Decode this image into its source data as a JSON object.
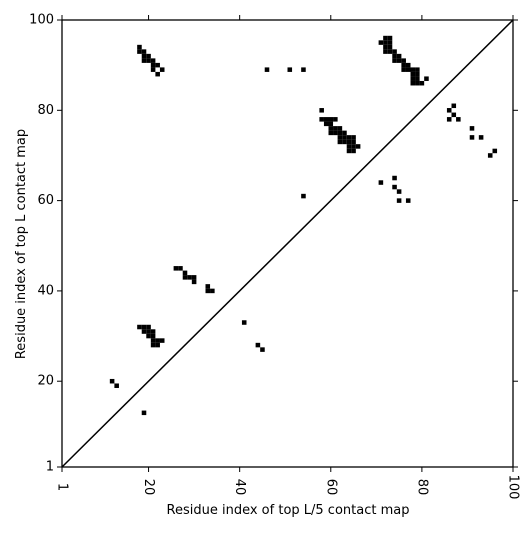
{
  "chart_data": {
    "type": "scatter",
    "title": "",
    "xlabel": "Residue index of top L/5 contact map",
    "ylabel": "Residue index of top L contact map",
    "xlim": [
      1,
      100
    ],
    "ylim": [
      1,
      100
    ],
    "x_ticks": [
      1,
      20,
      40,
      60,
      80,
      100
    ],
    "y_ticks": [
      1,
      20,
      40,
      60,
      80,
      100
    ],
    "grid": false,
    "marker_color": "#000000",
    "diagonal_line": {
      "from": [
        1,
        1
      ],
      "to": [
        100,
        100
      ],
      "color": "#000000"
    },
    "points": [
      [
        18,
        94
      ],
      [
        18,
        93
      ],
      [
        19,
        93
      ],
      [
        19,
        92
      ],
      [
        20,
        92
      ],
      [
        19,
        91
      ],
      [
        20,
        91
      ],
      [
        21,
        91
      ],
      [
        21,
        90
      ],
      [
        22,
        90
      ],
      [
        21,
        89
      ],
      [
        23,
        89
      ],
      [
        22,
        88
      ],
      [
        46,
        89
      ],
      [
        51,
        89
      ],
      [
        54,
        89
      ],
      [
        71,
        95
      ],
      [
        72,
        96
      ],
      [
        73,
        96
      ],
      [
        72,
        95
      ],
      [
        73,
        95
      ],
      [
        72,
        94
      ],
      [
        73,
        94
      ],
      [
        72,
        93
      ],
      [
        73,
        93
      ],
      [
        74,
        93
      ],
      [
        74,
        92
      ],
      [
        75,
        92
      ],
      [
        74,
        91
      ],
      [
        75,
        91
      ],
      [
        76,
        91
      ],
      [
        76,
        90
      ],
      [
        77,
        90
      ],
      [
        76,
        89
      ],
      [
        77,
        89
      ],
      [
        78,
        89
      ],
      [
        79,
        89
      ],
      [
        78,
        88
      ],
      [
        79,
        88
      ],
      [
        78,
        87
      ],
      [
        79,
        87
      ],
      [
        81,
        87
      ],
      [
        78,
        86
      ],
      [
        79,
        86
      ],
      [
        80,
        86
      ],
      [
        58,
        80
      ],
      [
        58,
        78
      ],
      [
        59,
        78
      ],
      [
        60,
        78
      ],
      [
        61,
        78
      ],
      [
        59,
        77
      ],
      [
        60,
        77
      ],
      [
        60,
        76
      ],
      [
        61,
        76
      ],
      [
        62,
        76
      ],
      [
        60,
        75
      ],
      [
        61,
        75
      ],
      [
        62,
        75
      ],
      [
        63,
        75
      ],
      [
        62,
        74
      ],
      [
        63,
        74
      ],
      [
        64,
        74
      ],
      [
        65,
        74
      ],
      [
        62,
        73
      ],
      [
        63,
        73
      ],
      [
        64,
        73
      ],
      [
        65,
        73
      ],
      [
        64,
        72
      ],
      [
        65,
        72
      ],
      [
        66,
        72
      ],
      [
        64,
        71
      ],
      [
        65,
        71
      ],
      [
        86,
        80
      ],
      [
        87,
        81
      ],
      [
        87,
        79
      ],
      [
        86,
        78
      ],
      [
        88,
        78
      ],
      [
        91,
        76
      ],
      [
        91,
        74
      ],
      [
        93,
        74
      ],
      [
        96,
        71
      ],
      [
        95,
        70
      ],
      [
        54,
        61
      ],
      [
        74,
        65
      ],
      [
        71,
        64
      ],
      [
        74,
        63
      ],
      [
        75,
        62
      ],
      [
        75,
        60
      ],
      [
        77,
        60
      ],
      [
        26,
        45
      ],
      [
        27,
        45
      ],
      [
        28,
        44
      ],
      [
        28,
        43
      ],
      [
        29,
        43
      ],
      [
        30,
        43
      ],
      [
        30,
        42
      ],
      [
        33,
        41
      ],
      [
        33,
        40
      ],
      [
        34,
        40
      ],
      [
        18,
        32
      ],
      [
        19,
        32
      ],
      [
        20,
        32
      ],
      [
        19,
        31
      ],
      [
        20,
        31
      ],
      [
        21,
        31
      ],
      [
        20,
        30
      ],
      [
        21,
        30
      ],
      [
        21,
        29
      ],
      [
        22,
        29
      ],
      [
        23,
        29
      ],
      [
        21,
        28
      ],
      [
        22,
        28
      ],
      [
        41,
        33
      ],
      [
        44,
        28
      ],
      [
        45,
        27
      ],
      [
        12,
        20
      ],
      [
        13,
        19
      ],
      [
        19,
        13
      ]
    ]
  }
}
